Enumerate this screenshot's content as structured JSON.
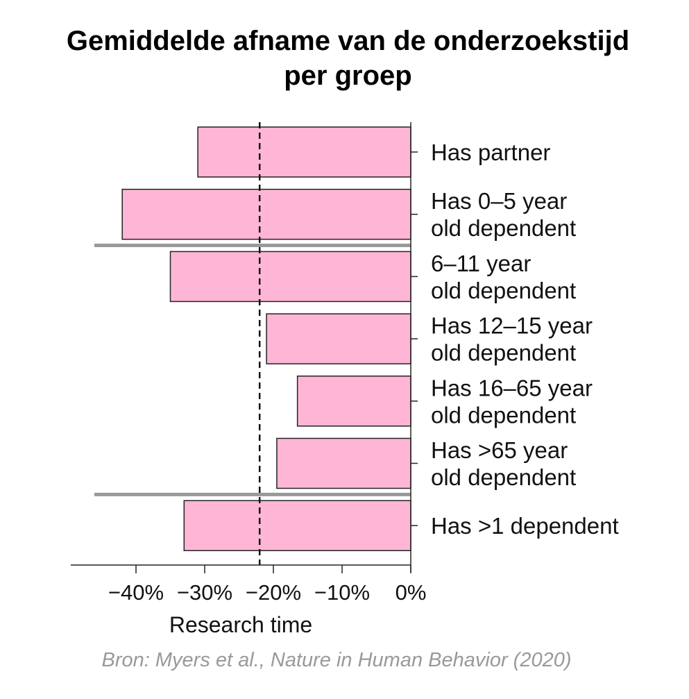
{
  "title_lines": [
    "Gemiddelde afname van de onderzoekstijd",
    "per groep"
  ],
  "source": "Bron: Myers et al.,  Nature in Human Behavior (2020)",
  "colors": {
    "bar_fill": "#ffb6d6",
    "bar_stroke": "#222222",
    "separator": "#999999",
    "reference": "#111111"
  },
  "chart_data": {
    "type": "bar",
    "orientation": "horizontal",
    "title": "Gemiddelde afname van de onderzoekstijd per groep",
    "xlabel": "Research time",
    "xlim": [
      -50,
      0
    ],
    "xticks": [
      -40,
      -30,
      -20,
      -10,
      0
    ],
    "xtick_labels": [
      "−40%",
      "−30%",
      "−20%",
      "−10%",
      "0%"
    ],
    "categories": [
      [
        "Has partner"
      ],
      [
        "Has 0–5 year",
        "old dependent"
      ],
      [
        "6–11 year",
        "old dependent"
      ],
      [
        "Has 12–15 year",
        "old dependent"
      ],
      [
        "Has 16–65 year",
        "old dependent"
      ],
      [
        "Has >65 year",
        "old dependent"
      ],
      [
        "Has >1 dependent"
      ]
    ],
    "values": [
      -31,
      -42,
      -35,
      -21,
      -16.5,
      -19.5,
      -33
    ],
    "reference_line": -22,
    "group_separators_after": [
      1,
      5
    ]
  }
}
